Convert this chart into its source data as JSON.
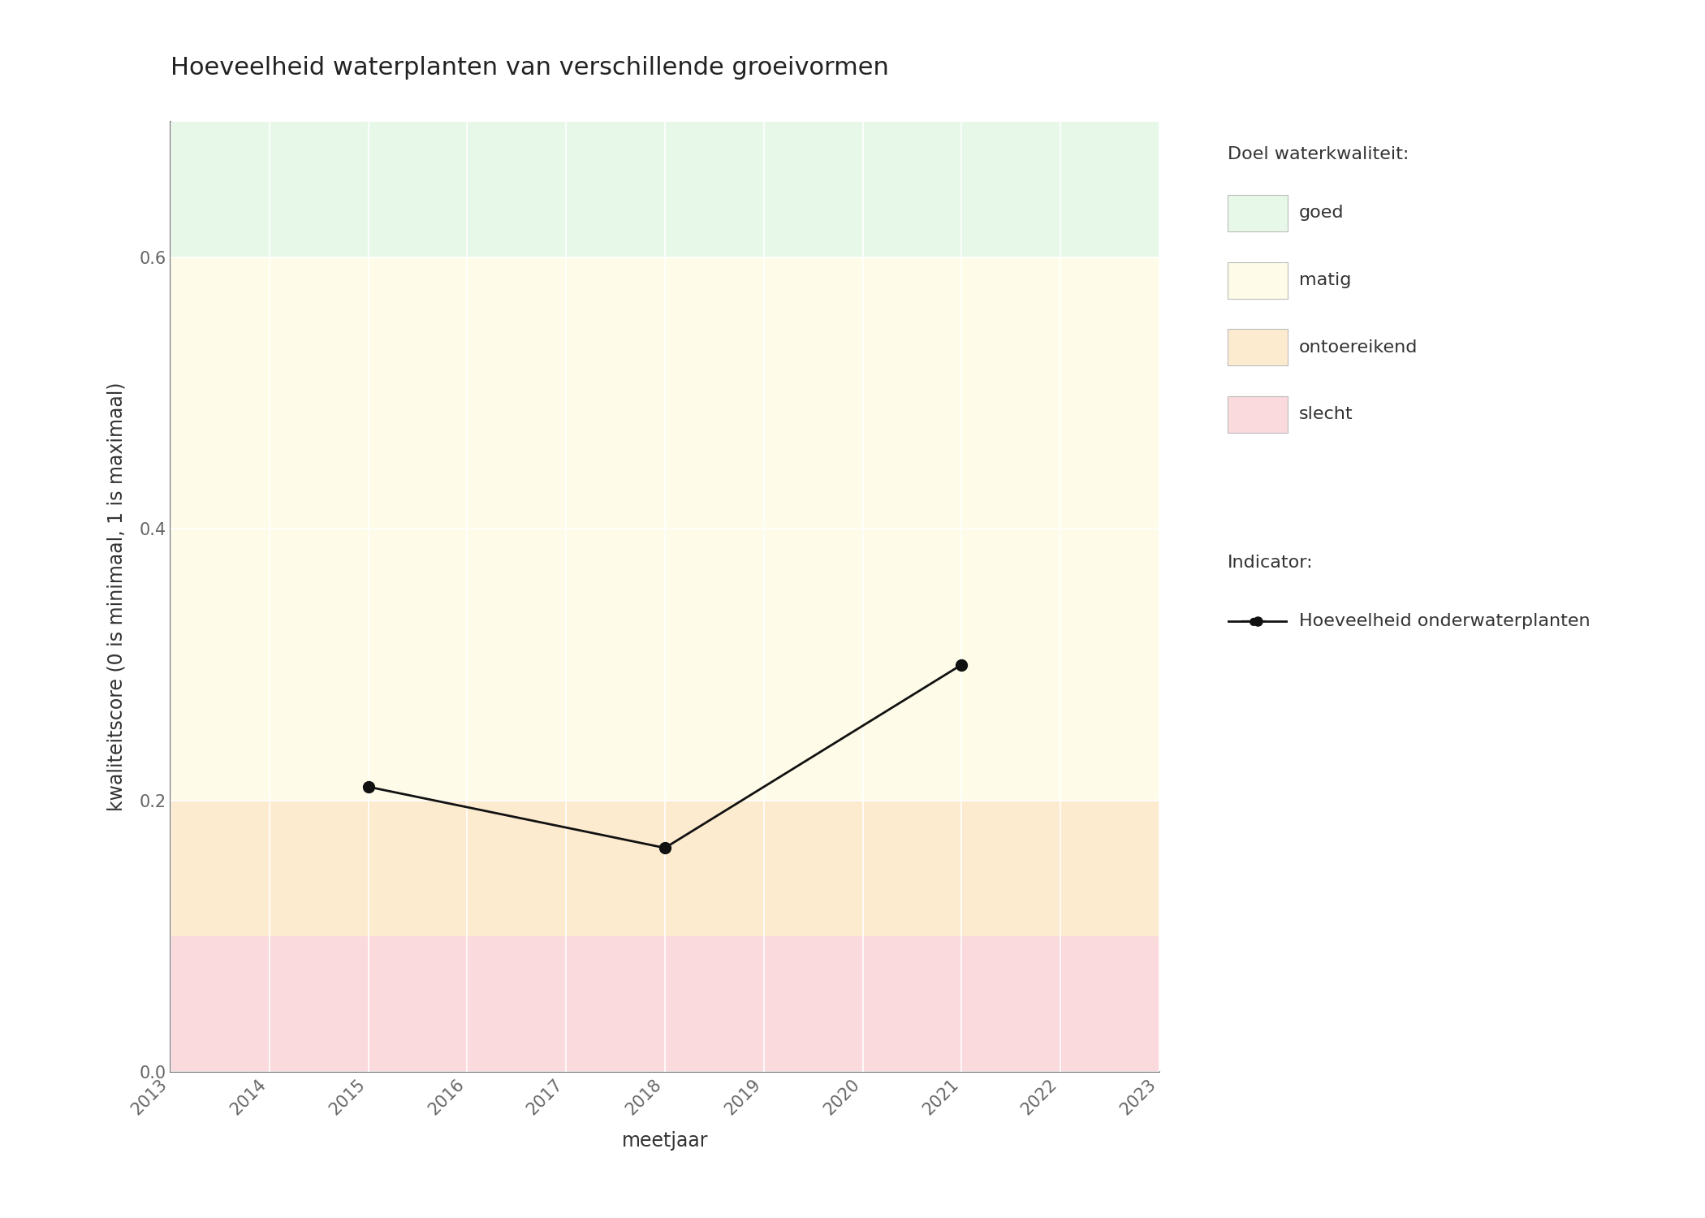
{
  "title": "Hoeveelheid waterplanten van verschillende groeivormen",
  "xlabel": "meetjaar",
  "ylabel": "kwaliteitscore (0 is minimaal, 1 is maximaal)",
  "xlim": [
    2013,
    2023
  ],
  "ylim": [
    0.0,
    0.7
  ],
  "yticks": [
    0.0,
    0.2,
    0.4,
    0.6
  ],
  "xticks": [
    2013,
    2014,
    2015,
    2016,
    2017,
    2018,
    2019,
    2020,
    2021,
    2022,
    2023
  ],
  "background_bands": [
    {
      "ymin": 0.0,
      "ymax": 0.1,
      "color": "#FADADD",
      "label": "slecht"
    },
    {
      "ymin": 0.1,
      "ymax": 0.2,
      "color": "#FDEBD0",
      "label": "ontoereikend"
    },
    {
      "ymin": 0.2,
      "ymax": 0.6,
      "color": "#FEFCE8",
      "label": "matig"
    },
    {
      "ymin": 0.6,
      "ymax": 0.7,
      "color": "#E8F8E8",
      "label": "goed"
    }
  ],
  "series": [
    {
      "name": "Hoeveelheid onderwaterplanten",
      "x": [
        2015,
        2018,
        2021
      ],
      "y": [
        0.21,
        0.165,
        0.3
      ],
      "color": "#111111",
      "marker": "o",
      "markersize": 10,
      "linewidth": 2
    }
  ],
  "legend_title_quality": "Doel waterkwaliteit:",
  "legend_title_indicator": "Indicator:",
  "legend_quality_colors": [
    "#E8F8E8",
    "#FEFCE8",
    "#FDEBD0",
    "#FADADD"
  ],
  "legend_quality_labels": [
    "goed",
    "matig",
    "ontoereikend",
    "slecht"
  ],
  "bg_color": "#FFFFFF",
  "grid_color": "#FFFFFF",
  "title_fontsize": 22,
  "label_fontsize": 17,
  "tick_fontsize": 15,
  "legend_fontsize": 16
}
